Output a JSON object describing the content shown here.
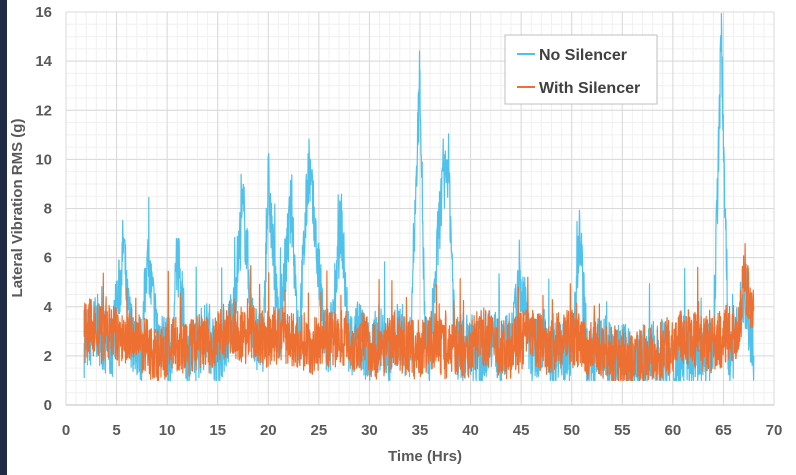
{
  "chart_data": {
    "type": "line",
    "title": "",
    "xlabel": "Time (Hrs)",
    "ylabel": "Lateral Vibration RMS (g)",
    "xlim": [
      0,
      70
    ],
    "ylim": [
      0,
      16
    ],
    "xticks": [
      0,
      5,
      10,
      15,
      20,
      25,
      30,
      35,
      40,
      45,
      50,
      55,
      60,
      65,
      70
    ],
    "yticks": [
      0,
      2,
      4,
      6,
      8,
      10,
      12,
      14,
      16
    ],
    "grid": true,
    "legend": "top-right",
    "series": [
      {
        "name": "No Silencer",
        "color": "#4fc1ea",
        "x": [
          1.8,
          3,
          4.5,
          5.5,
          5.7,
          6,
          6.5,
          7.5,
          8,
          9,
          10.5,
          11,
          12,
          13,
          14,
          15,
          16.5,
          17.5,
          18.5,
          19.5,
          20,
          21,
          22.3,
          23,
          24,
          25.5,
          26,
          27.2,
          28,
          29,
          30,
          31,
          32,
          33,
          34,
          35,
          35.5,
          36,
          37,
          37.8,
          38.5,
          40,
          41,
          42,
          43,
          44,
          45,
          46,
          47,
          48,
          49,
          50,
          50.8,
          51.5,
          52,
          53,
          54,
          55,
          56,
          57,
          58,
          59,
          60,
          61,
          62,
          63,
          64,
          64.8,
          65.5,
          66,
          67,
          68
        ],
        "y": [
          2.5,
          3.2,
          2.2,
          5.5,
          6.8,
          4.2,
          2.8,
          2.2,
          6.0,
          3.0,
          2.0,
          6.2,
          1.8,
          2.4,
          3.0,
          2.0,
          3.5,
          8.2,
          3.0,
          2.2,
          9.2,
          2.8,
          8.2,
          2.5,
          9.8,
          3.0,
          2.0,
          7.6,
          2.2,
          3.0,
          2.0,
          2.8,
          2.2,
          3.0,
          2.0,
          13.6,
          2.5,
          2.0,
          8.0,
          10.0,
          2.2,
          2.5,
          2.0,
          3.0,
          2.0,
          2.5,
          5.0,
          2.0,
          2.8,
          2.0,
          2.5,
          2.2,
          7.0,
          2.0,
          1.6,
          2.5,
          1.8,
          2.0,
          1.8,
          1.6,
          2.0,
          2.2,
          1.5,
          2.0,
          2.4,
          2.0,
          2.2,
          15.0,
          2.0,
          2.4,
          4.5,
          2.0
        ]
      },
      {
        "name": "With Silencer",
        "color": "#ed7032",
        "x": [
          1.8,
          2.5,
          3.5,
          4.5,
          5.5,
          6.5,
          7.5,
          8.5,
          9.5,
          10.5,
          11.5,
          12.5,
          13.5,
          14.5,
          15.5,
          16.5,
          17.5,
          18.5,
          19.5,
          20.5,
          21.5,
          22.5,
          23.5,
          24.5,
          25.5,
          26.5,
          27.5,
          28.5,
          29.5,
          30.5,
          31.5,
          32.5,
          33.5,
          34.5,
          35.5,
          36.5,
          37.5,
          38.5,
          39.5,
          40.5,
          41.5,
          42.5,
          43.5,
          44.5,
          45.5,
          46.5,
          47.5,
          48.5,
          49.5,
          50.5,
          51.5,
          52.5,
          53.5,
          54.5,
          55.5,
          56.5,
          57.5,
          58.5,
          59.5,
          60.5,
          61.5,
          62.5,
          63.5,
          64.5,
          65.5,
          66.5,
          67,
          67.5,
          68
        ],
        "y": [
          2.8,
          3.2,
          2.8,
          3.0,
          2.6,
          2.8,
          2.4,
          2.2,
          2.0,
          2.6,
          2.2,
          2.4,
          2.6,
          2.2,
          3.0,
          3.2,
          2.8,
          3.0,
          2.6,
          2.8,
          2.8,
          2.6,
          2.6,
          2.4,
          2.8,
          2.6,
          2.8,
          2.4,
          2.6,
          2.2,
          2.4,
          2.6,
          2.4,
          2.2,
          2.4,
          2.6,
          2.2,
          2.4,
          2.2,
          2.6,
          2.8,
          2.4,
          2.2,
          2.4,
          2.8,
          2.6,
          2.4,
          2.6,
          2.8,
          2.6,
          2.2,
          2.4,
          2.2,
          2.0,
          1.8,
          2.0,
          2.2,
          2.0,
          2.4,
          2.6,
          2.8,
          2.6,
          2.4,
          2.6,
          2.8,
          3.0,
          5.0,
          4.5,
          4.0
        ]
      }
    ]
  }
}
